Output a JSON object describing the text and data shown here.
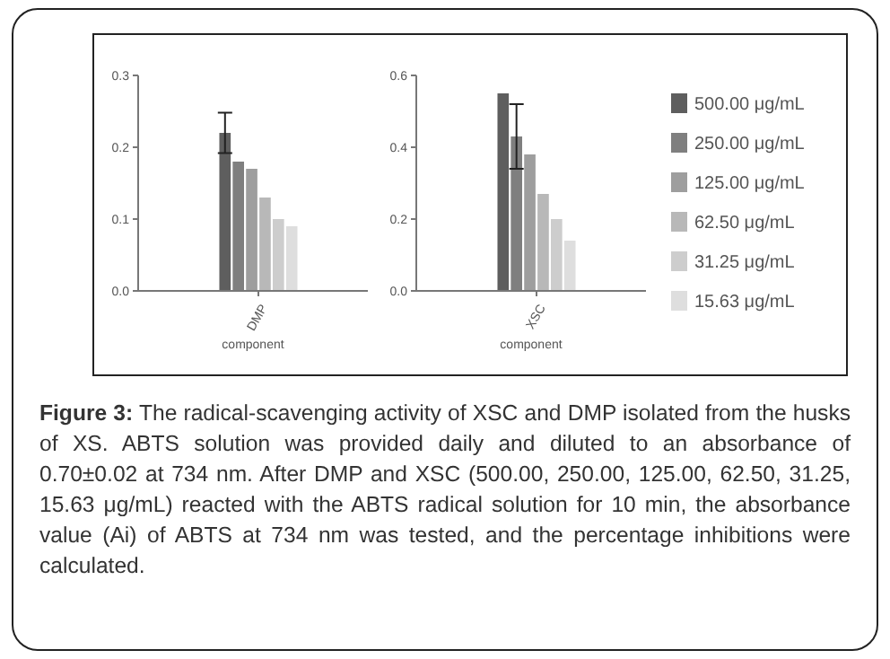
{
  "chart_data": [
    {
      "type": "bar",
      "categories": [
        "DMP"
      ],
      "xlabel": "component",
      "ylim": [
        0,
        0.3
      ],
      "yticks": [
        {
          "value": 0,
          "label": "0.0"
        },
        0.1,
        0.2,
        0.3
      ],
      "legend": false,
      "series": [
        {
          "color": "#5e5e5e",
          "values": [
            0.22
          ],
          "errors": [
            0.028
          ]
        },
        {
          "color": "#7f7f7f",
          "values": [
            0.18
          ]
        },
        {
          "color": "#9e9e9e",
          "values": [
            0.17
          ]
        },
        {
          "color": "#b8b8b8",
          "values": [
            0.13
          ]
        },
        {
          "color": "#cdcdcd",
          "values": [
            0.1
          ]
        },
        {
          "color": "#dedede",
          "values": [
            0.09
          ]
        }
      ],
      "annotations": [
        "Figure 3: The radical-scavenging activity of XSC and DMP isolated from the husks of XS. ABTS solution was provided daily and diluted to an absorbance of 0.70±0.02 at 734 nm. After DMP and XSC (500.00, 250.00, 125.00, 62.50, 31.25, 15.63 μg/mL) reacted with the ABTS radical solution for 10 min, the absorbance value (Ai) of ABTS at 734 nm was tested, and the percentage inhibitions were calculated."
      ]
    },
    {
      "type": "bar",
      "categories": [
        "XSC"
      ],
      "xlabel": "component",
      "ylim": [
        0,
        0.6
      ],
      "yticks": [
        {
          "value": 0,
          "label": "0.0"
        },
        0.2,
        0.4,
        0.6
      ],
      "legend": "right",
      "series": [
        {
          "name": "500.00 μg/mL",
          "color": "#5e5e5e",
          "values": [
            0.55
          ]
        },
        {
          "name": "250.00 μg/mL",
          "color": "#7f7f7f",
          "values": [
            0.43
          ],
          "errors": [
            0.09
          ]
        },
        {
          "name": "125.00 μg/mL",
          "color": "#9e9e9e",
          "values": [
            0.38
          ]
        },
        {
          "name": "62.50 μg/mL",
          "color": "#b8b8b8",
          "values": [
            0.27
          ]
        },
        {
          "name": "31.25 μg/mL",
          "color": "#cdcdcd",
          "values": [
            0.2
          ]
        },
        {
          "name": "15.63 μg/mL",
          "color": "#dedede",
          "values": [
            0.14
          ]
        }
      ]
    }
  ]
}
